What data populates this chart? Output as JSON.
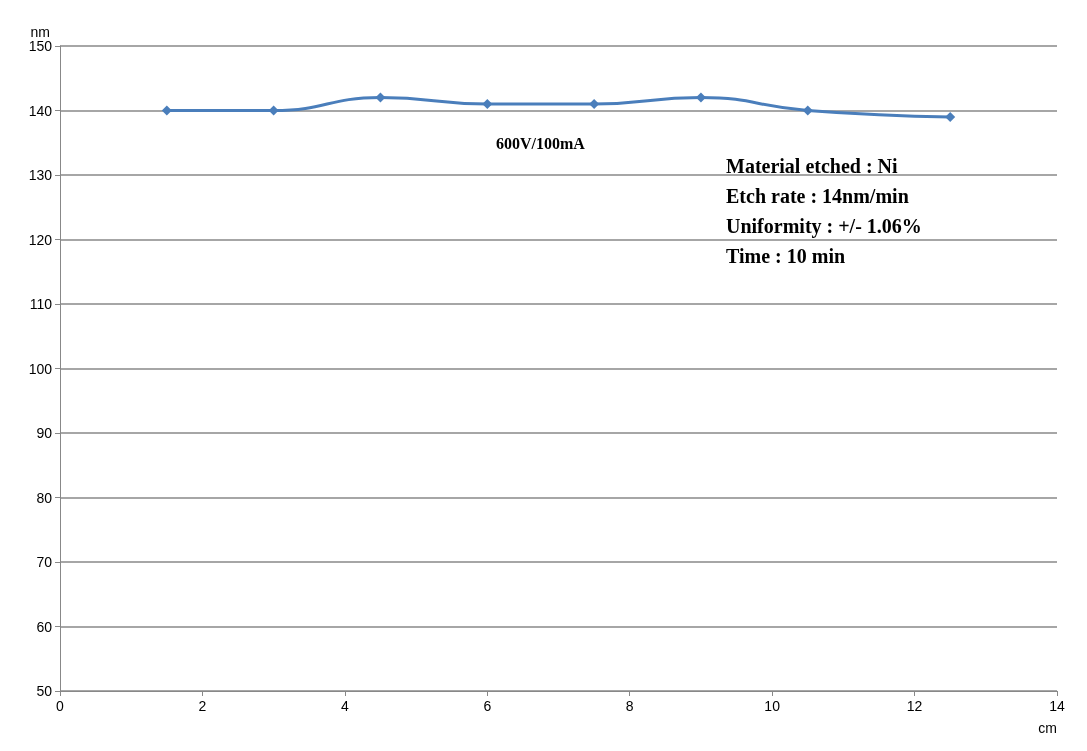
{
  "chart_data": {
    "type": "line",
    "xlabel": "cm",
    "ylabel": "nm",
    "x": [
      1.5,
      3,
      4.5,
      6,
      7.5,
      9,
      10.5,
      12.5
    ],
    "series": [
      {
        "color": "#4a7ebb",
        "values": [
          140,
          140,
          142,
          141,
          141,
          142,
          140,
          139
        ]
      }
    ],
    "xlim": [
      0,
      14
    ],
    "xticks": [
      0,
      2,
      4,
      6,
      8,
      10,
      12,
      14
    ],
    "ylim": [
      50,
      150
    ],
    "yticks": [
      50,
      60,
      70,
      80,
      90,
      100,
      110,
      120,
      130,
      140,
      150
    ],
    "grid": "y",
    "marker": "diamond",
    "line_style": "solid",
    "annotations": [
      "600V/100mA",
      "Material etched : Ni\nEtch rate : 14nm/min\nUniformity : +/- 1.06%\nTime : 10 min"
    ]
  }
}
